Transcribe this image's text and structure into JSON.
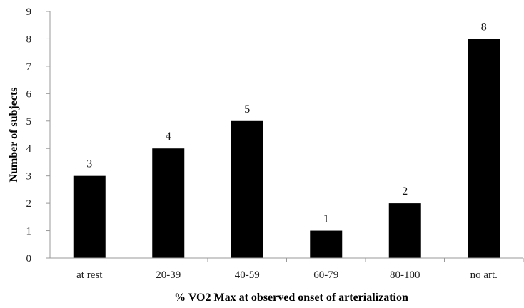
{
  "chart_data": {
    "type": "bar",
    "title": "",
    "xlabel": "% VO2 Max at observed onset of arterialization",
    "ylabel": "Number of subjects",
    "categories": [
      "at rest",
      "20-39",
      "40-59",
      "60-79",
      "80-100",
      "no art."
    ],
    "values": [
      3,
      4,
      5,
      1,
      2,
      8
    ],
    "data_labels": [
      "3",
      "4",
      "5",
      "1",
      "2",
      "8"
    ],
    "ylim": [
      0,
      9
    ],
    "yticks": [
      "0",
      "1",
      "2",
      "3",
      "4",
      "5",
      "6",
      "7",
      "8",
      "9"
    ],
    "grid": false,
    "legend": "none",
    "bar_color": "#000000",
    "axis_color": "#999999"
  }
}
